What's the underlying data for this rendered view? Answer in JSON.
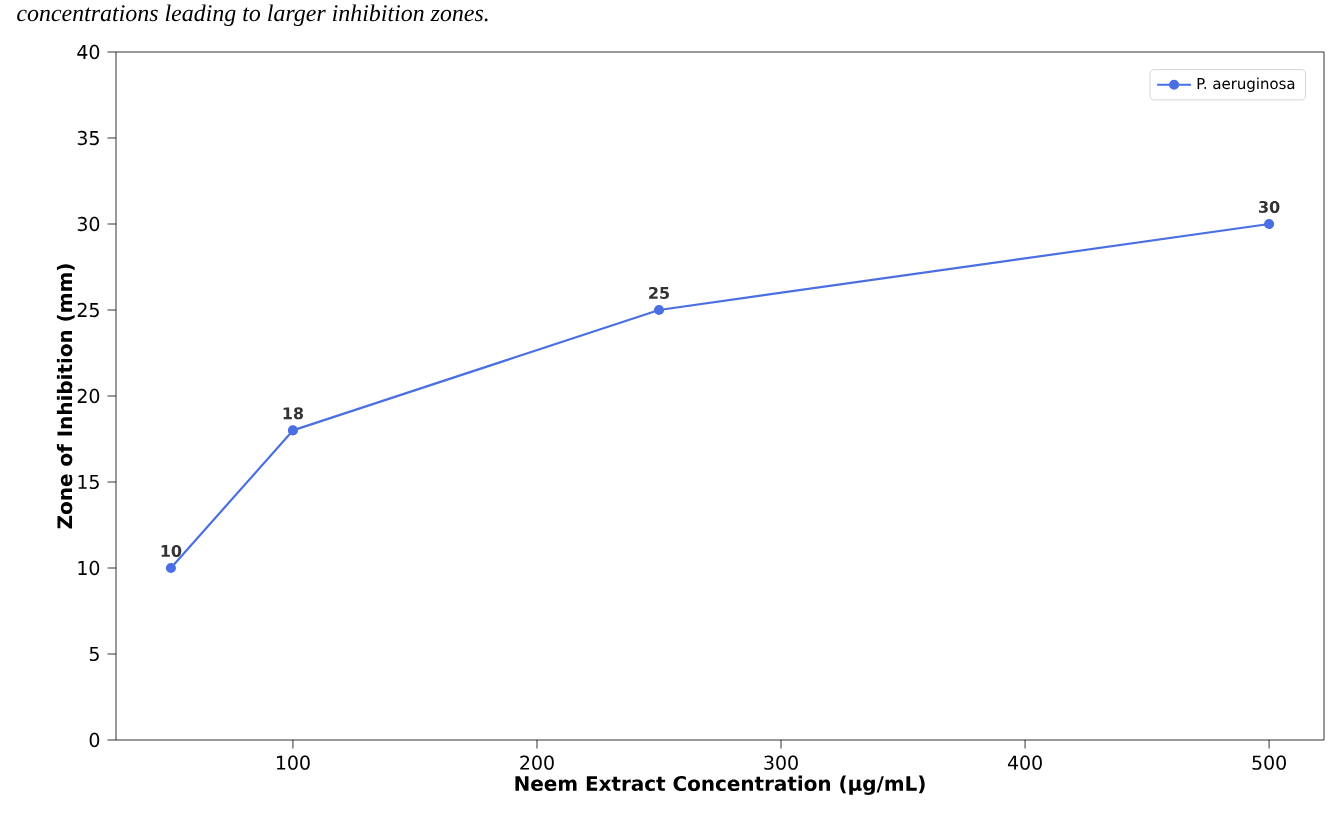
{
  "chart_data": {
    "type": "line",
    "annotations": [
      "concentrations leading to larger inhibition zones."
    ],
    "xlabel": "Neem Extract Concentration (µg/mL)",
    "ylabel": "Zone of Inhibition (mm)",
    "x": [
      50,
      100,
      250,
      500
    ],
    "series": [
      {
        "name": "P. aeruginosa",
        "color": "#4a6fe3",
        "values": [
          10,
          18,
          25,
          30
        ]
      }
    ],
    "xlim": [
      27.5,
      522.5
    ],
    "xticks": [
      100,
      200,
      300,
      400,
      500
    ],
    "ylim": [
      0,
      40
    ],
    "yticks": [
      0,
      5,
      10,
      15,
      20,
      25,
      30,
      35,
      40
    ],
    "data_labels": true,
    "legend": "top right",
    "marker": "circle",
    "line_style": "solid",
    "grid": false
  }
}
